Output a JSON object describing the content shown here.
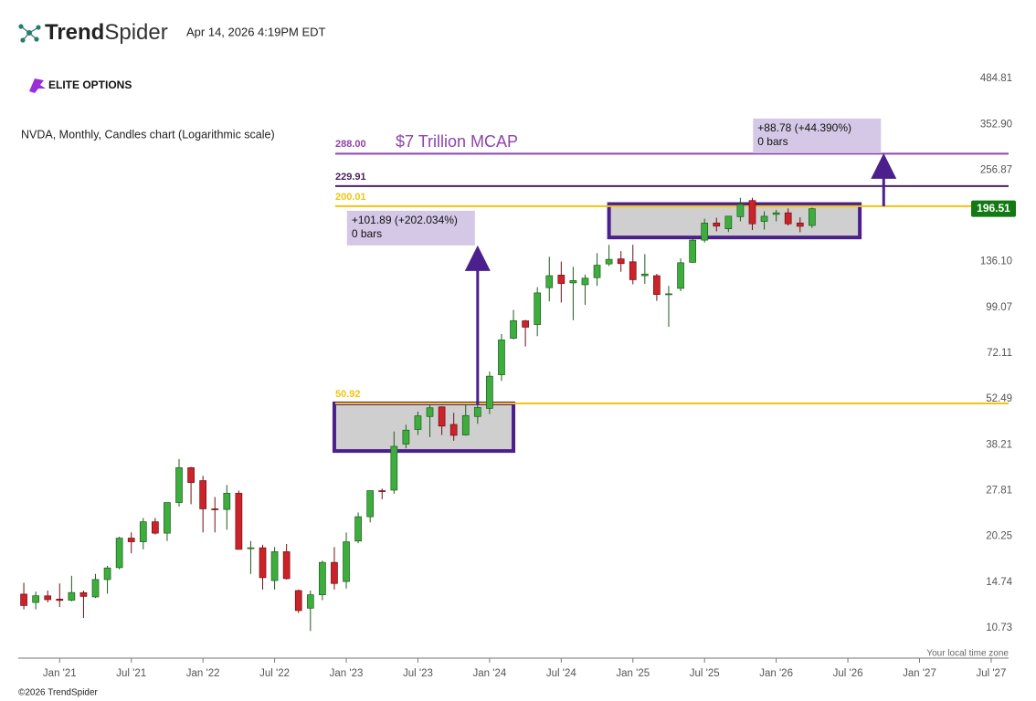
{
  "header": {
    "brand_bold": "Trend",
    "brand_light": "Spider",
    "timestamp": "Apr 14, 2026 4:19PM EDT",
    "badge": "ELITE OPTIONS",
    "timezone": "Your local time zone",
    "copyright": "©2026 TrendSpider"
  },
  "chart_data": {
    "type": "candlestick",
    "title": "NVDA, Monthly, Candles chart (Logarithmic scale)",
    "log_scale": true,
    "grid": false,
    "up_color": "#3dae3d",
    "down_color": "#cc2229",
    "x": [
      "2020-10",
      "2020-11",
      "2020-12",
      "2021-01",
      "2021-02",
      "2021-03",
      "2021-04",
      "2021-05",
      "2021-06",
      "2021-07",
      "2021-08",
      "2021-09",
      "2021-10",
      "2021-11",
      "2021-12",
      "2022-01",
      "2022-02",
      "2022-03",
      "2022-04",
      "2022-05",
      "2022-06",
      "2022-07",
      "2022-08",
      "2022-09",
      "2022-10",
      "2022-11",
      "2022-12",
      "2023-01",
      "2023-02",
      "2023-03",
      "2023-04",
      "2023-05",
      "2023-06",
      "2023-07",
      "2023-08",
      "2023-09",
      "2023-10",
      "2023-11",
      "2023-12",
      "2024-01",
      "2024-02",
      "2024-03",
      "2024-04",
      "2024-05",
      "2024-06",
      "2024-07",
      "2024-08",
      "2024-09",
      "2024-10",
      "2024-11",
      "2024-12",
      "2025-01",
      "2025-02",
      "2025-03",
      "2025-04",
      "2025-05",
      "2025-06",
      "2025-07",
      "2025-08",
      "2025-09",
      "2025-10",
      "2025-11",
      "2025-12",
      "2026-01",
      "2026-02",
      "2026-03",
      "2026-04"
    ],
    "open": [
      13.56,
      12.8,
      13.4,
      13.1,
      13.0,
      13.7,
      13.3,
      15.0,
      16.3,
      20.0,
      19.5,
      22.4,
      20.7,
      25.6,
      32.6,
      29.8,
      24.5,
      24.4,
      27.3,
      18.7,
      18.7,
      14.9,
      18.2,
      13.9,
      12.3,
      13.5,
      16.9,
      14.8,
      19.6,
      23.2,
      27.8,
      27.9,
      38.4,
      42.5,
      46.5,
      49.7,
      44.0,
      40.9,
      46.5,
      49.2,
      62.1,
      80.0,
      90.3,
      88.0,
      113.6,
      124.0,
      117.5,
      116.0,
      121.8,
      134.0,
      138.8,
      136.0,
      123.5,
      123.5,
      108.5,
      113.1,
      135.5,
      158.0,
      178.0,
      171.0,
      186.0,
      208.0,
      180.0,
      189.0,
      191.0,
      178.0,
      175.0
    ],
    "high": [
      14.67,
      13.8,
      13.9,
      14.6,
      15.4,
      13.9,
      15.6,
      16.5,
      20.2,
      20.8,
      23.0,
      23.0,
      25.6,
      34.6,
      32.8,
      30.8,
      26.6,
      28.9,
      27.8,
      19.6,
      19.1,
      18.8,
      19.2,
      14.0,
      13.9,
      17.1,
      18.8,
      20.8,
      23.9,
      27.8,
      28.2,
      41.9,
      43.9,
      48.1,
      50.3,
      49.9,
      47.7,
      50.5,
      50.4,
      63.5,
      82.4,
      97.4,
      90.9,
      114.0,
      140.8,
      136.2,
      131.3,
      124.4,
      144.4,
      152.9,
      146.5,
      153.1,
      143.4,
      125.1,
      115.1,
      139.2,
      159.4,
      183.3,
      184.5,
      187.0,
      212.0,
      212.0,
      193.0,
      195.0,
      197.0,
      185.0,
      198.0
    ],
    "low": [
      12.2,
      12.2,
      12.8,
      12.4,
      12.9,
      11.5,
      13.2,
      13.6,
      16.1,
      18.0,
      18.5,
      20.5,
      19.6,
      24.9,
      25.3,
      20.8,
      20.8,
      21.2,
      18.5,
      15.6,
      14.0,
      14.0,
      15.0,
      11.9,
      10.5,
      13.0,
      14.0,
      14.1,
      19.3,
      22.3,
      26.2,
      27.2,
      37.3,
      40.9,
      40.3,
      40.9,
      39.3,
      40.7,
      44.2,
      47.3,
      59.5,
      79.4,
      75.6,
      81.2,
      103.4,
      102.5,
      90.7,
      100.9,
      115.1,
      132.1,
      126.9,
      116.3,
      116.7,
      103.7,
      86.6,
      110.9,
      134.9,
      155.4,
      168.0,
      167.2,
      180.0,
      169.5,
      170.0,
      180.0,
      175.0,
      167.0,
      172.0
    ],
    "close": [
      12.53,
      13.41,
      13.05,
      12.98,
      13.71,
      13.35,
      15.01,
      16.26,
      20.0,
      19.5,
      22.4,
      20.7,
      25.6,
      32.6,
      29.4,
      24.5,
      24.4,
      27.3,
      18.5,
      18.7,
      15.2,
      18.2,
      15.1,
      12.1,
      13.5,
      16.9,
      14.6,
      19.5,
      23.2,
      27.8,
      27.7,
      37.8,
      42.3,
      46.7,
      49.4,
      43.5,
      40.8,
      46.8,
      49.5,
      61.5,
      79.1,
      90.4,
      86.4,
      109.6,
      123.5,
      117.0,
      119.4,
      121.4,
      132.8,
      138.3,
      134.3,
      120.1,
      124.9,
      108.4,
      108.9,
      135.1,
      158.0,
      177.9,
      174.2,
      186.6,
      202.5,
      177.0,
      186.5,
      191.0,
      177.0,
      174.0,
      196.51
    ],
    "xlim": [
      "2020-09",
      "2027-08"
    ],
    "xticks": [
      {
        "value": "2021-01",
        "label": "Jan '21"
      },
      {
        "value": "2021-07",
        "label": "Jul '21"
      },
      {
        "value": "2022-01",
        "label": "Jan '22"
      },
      {
        "value": "2022-07",
        "label": "Jul '22"
      },
      {
        "value": "2023-01",
        "label": "Jan '23"
      },
      {
        "value": "2023-07",
        "label": "Jul '23"
      },
      {
        "value": "2024-01",
        "label": "Jan '24"
      },
      {
        "value": "2024-07",
        "label": "Jul '24"
      },
      {
        "value": "2025-01",
        "label": "Jan '25"
      },
      {
        "value": "2025-07",
        "label": "Jul '25"
      },
      {
        "value": "2026-01",
        "label": "Jan '26"
      },
      {
        "value": "2026-07",
        "label": "Jul '26"
      },
      {
        "value": "2027-01",
        "label": "Jan '27"
      },
      {
        "value": "2027-07",
        "label": "Jul '27"
      }
    ],
    "ylim": [
      8.7,
      520
    ],
    "yticks": [
      10.73,
      14.74,
      20.25,
      27.81,
      38.21,
      52.49,
      72.11,
      99.07,
      {
        "value": 136.1,
        "label": "136.10"
      },
      256.87,
      {
        "value": 352.9,
        "label": "352.90"
      },
      484.81
    ],
    "levels": [
      {
        "value": 288,
        "label": "288.00",
        "note": "$7 Trillion MCAP",
        "color": "#8e44ad"
      },
      {
        "value": 229.91,
        "label": "229.91",
        "color": "#4a235a"
      },
      {
        "value": 200.01,
        "label": "200.01",
        "color": "#f1c40f"
      },
      {
        "value": 50.92,
        "label": "50.92",
        "color": "#f1c40f"
      }
    ],
    "boxes": [
      {
        "x": [
          "2022-12",
          "2024-03"
        ],
        "y": [
          36.6,
          50.92
        ]
      },
      {
        "x": [
          "2024-11",
          "2026-08"
        ],
        "y": [
          161,
          203
        ]
      }
    ],
    "measures": [
      {
        "x": "2023-12",
        "from": 50.43,
        "to": 152.32,
        "text": "+101.89 (+202.034%)",
        "bars": "0 bars"
      },
      {
        "x": "2026-10",
        "from": 200.01,
        "to": 288.79,
        "text": "+88.78 (+44.390%)",
        "bars": "0 bars"
      }
    ],
    "shape_color": "#4b1f8c"
  }
}
